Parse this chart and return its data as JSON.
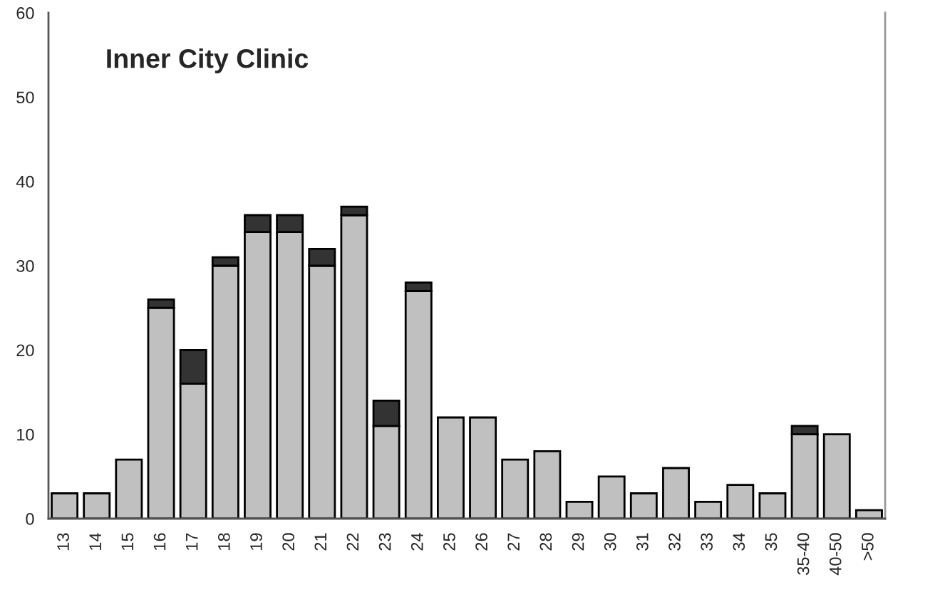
{
  "chart_data": {
    "type": "bar",
    "title": "Inner City Clinic",
    "stacked": true,
    "categories": [
      "13",
      "14",
      "15",
      "16",
      "17",
      "18",
      "19",
      "20",
      "21",
      "22",
      "23",
      "24",
      "25",
      "26",
      "27",
      "28",
      "29",
      "30",
      "31",
      "32",
      "33",
      "34",
      "35",
      "35-40",
      "40-50",
      ">50"
    ],
    "series": [
      {
        "color": "#c0c0c0",
        "values": [
          3,
          3,
          7,
          25,
          16,
          30,
          34,
          34,
          30,
          36,
          11,
          27,
          12,
          12,
          7,
          8,
          2,
          5,
          3,
          6,
          2,
          4,
          3,
          10,
          10,
          1
        ]
      },
      {
        "color": "#333333",
        "values": [
          null,
          null,
          null,
          1,
          4,
          1,
          2,
          2,
          2,
          1,
          3,
          1,
          null,
          null,
          null,
          null,
          null,
          null,
          null,
          null,
          null,
          null,
          null,
          1,
          null,
          null
        ]
      }
    ],
    "ylim": [
      0,
      60
    ],
    "yticks": [
      0,
      10,
      20,
      30,
      40,
      50,
      60
    ],
    "grid": false,
    "legend": false
  }
}
